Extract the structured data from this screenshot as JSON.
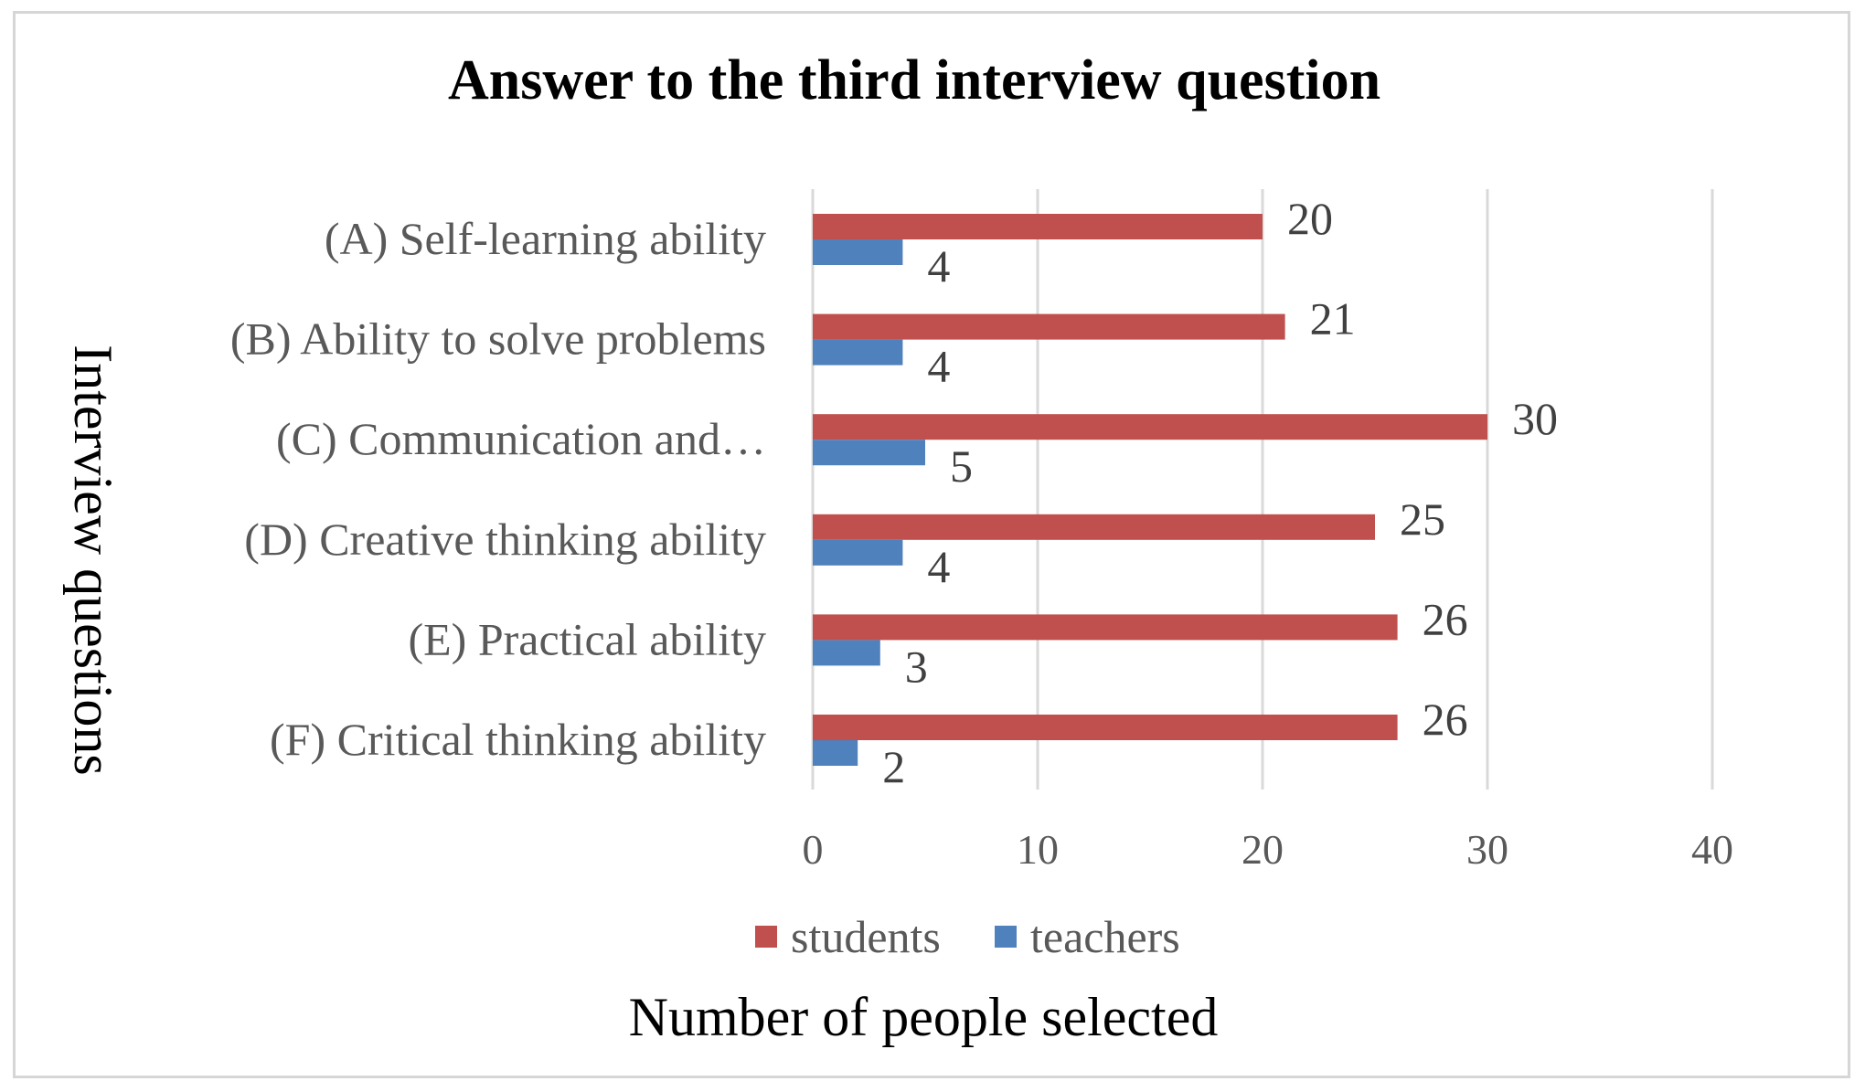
{
  "chart_data": {
    "type": "bar",
    "orientation": "horizontal",
    "title": "Answer to the third interview question",
    "xlabel": "Number of people selected",
    "ylabel": "Interview questions",
    "categories": [
      "(A) Self-learning ability",
      "(B) Ability to solve problems",
      "(C) Communication and…",
      "(D) Creative thinking ability",
      "(E) Practical ability",
      "(F) Critical thinking ability"
    ],
    "series": [
      {
        "name": "students",
        "color": "#c0504d",
        "values": [
          20,
          21,
          30,
          25,
          26,
          26
        ]
      },
      {
        "name": "teachers",
        "color": "#4f81bd",
        "values": [
          4,
          4,
          5,
          4,
          3,
          2
        ]
      }
    ],
    "xlim": [
      0,
      40
    ],
    "xticks": [
      "0",
      "10",
      "20",
      "30",
      "40"
    ],
    "grid": true,
    "legend_position": "bottom"
  }
}
